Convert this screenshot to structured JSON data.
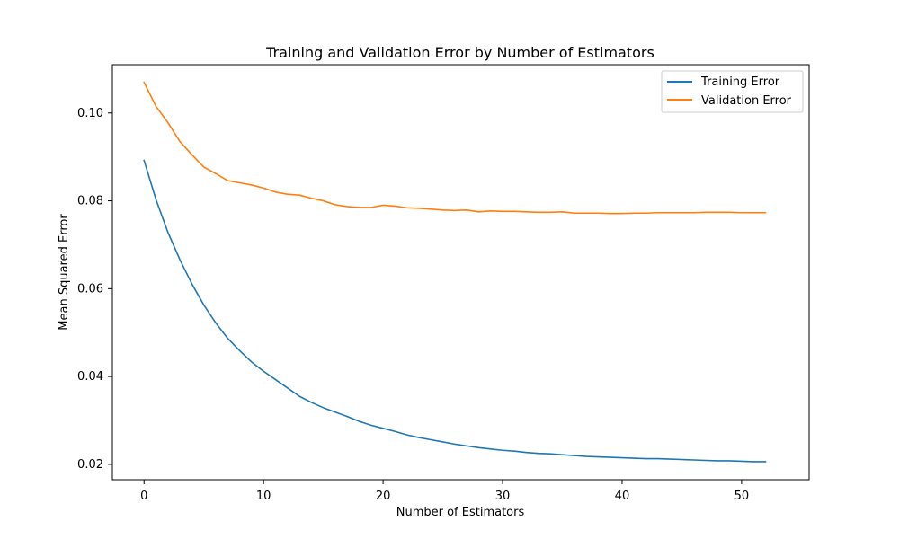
{
  "chart_data": {
    "type": "line",
    "title": "Training and Validation Error by Number of Estimators",
    "xlabel": "Number of Estimators",
    "ylabel": "Mean Squared Error",
    "xlim": [
      -2.65,
      55.65
    ],
    "ylim": [
      0.0165,
      0.111
    ],
    "xticks": [
      0,
      10,
      20,
      30,
      40,
      50
    ],
    "yticks": [
      0.02,
      0.04,
      0.06,
      0.08,
      0.1
    ],
    "ytick_labels": [
      "0.02",
      "0.04",
      "0.06",
      "0.08",
      "0.10"
    ],
    "grid": false,
    "legend_position": "top-right",
    "x": [
      0,
      1,
      2,
      3,
      4,
      5,
      6,
      7,
      8,
      9,
      10,
      11,
      12,
      13,
      14,
      15,
      16,
      17,
      18,
      19,
      20,
      21,
      22,
      23,
      24,
      25,
      26,
      27,
      28,
      29,
      30,
      31,
      32,
      33,
      34,
      35,
      36,
      37,
      38,
      39,
      40,
      41,
      42,
      43,
      44,
      45,
      46,
      47,
      48,
      49,
      50,
      51,
      52
    ],
    "series": [
      {
        "name": "Training Error",
        "color": "#1f77b4",
        "values": [
          0.0892,
          0.0803,
          0.0728,
          0.0666,
          0.0611,
          0.0563,
          0.0522,
          0.0487,
          0.0459,
          0.0433,
          0.0412,
          0.0393,
          0.0374,
          0.0355,
          0.0341,
          0.0329,
          0.0319,
          0.0309,
          0.0298,
          0.0289,
          0.0282,
          0.0275,
          0.0267,
          0.0261,
          0.0256,
          0.0251,
          0.0246,
          0.0242,
          0.0238,
          0.0235,
          0.0232,
          0.023,
          0.0227,
          0.0225,
          0.0224,
          0.0222,
          0.022,
          0.0218,
          0.0217,
          0.0216,
          0.0215,
          0.0214,
          0.0213,
          0.0213,
          0.0212,
          0.0211,
          0.021,
          0.0209,
          0.0208,
          0.0208,
          0.0207,
          0.0206,
          0.0206
        ]
      },
      {
        "name": "Validation Error",
        "color": "#ff7f0e",
        "values": [
          0.107,
          0.1015,
          0.0978,
          0.0935,
          0.0905,
          0.0877,
          0.0862,
          0.0846,
          0.0841,
          0.0836,
          0.0829,
          0.082,
          0.0815,
          0.0813,
          0.0806,
          0.08,
          0.0791,
          0.0787,
          0.0785,
          0.0785,
          0.079,
          0.0788,
          0.0784,
          0.0783,
          0.0781,
          0.0779,
          0.0778,
          0.0779,
          0.0775,
          0.0777,
          0.0776,
          0.0776,
          0.0775,
          0.0774,
          0.0774,
          0.0775,
          0.0772,
          0.0772,
          0.0772,
          0.0771,
          0.0771,
          0.0772,
          0.0772,
          0.0773,
          0.0773,
          0.0773,
          0.0773,
          0.0774,
          0.0774,
          0.0774,
          0.0773,
          0.0773,
          0.0773
        ]
      }
    ]
  }
}
